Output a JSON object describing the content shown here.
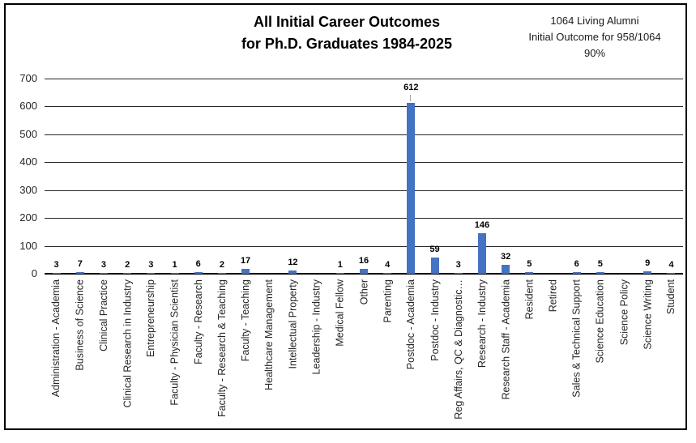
{
  "title_lines": [
    "All Initial Career Outcomes",
    "for Ph.D. Graduates 1984-2025"
  ],
  "annotation_lines": [
    "1064 Living Alumni",
    "Initial Outcome for 958/1064",
    "90%"
  ],
  "chart_data": {
    "type": "bar",
    "title": "All Initial Career Outcomes for Ph.D. Graduates 1984-2025",
    "annotation": "1064 Living Alumni Initial Outcome for 958/1064 90%",
    "xlabel": "",
    "ylabel": "",
    "ylim": [
      0,
      700
    ],
    "yticks": [
      0,
      100,
      200,
      300,
      400,
      500,
      600,
      700
    ],
    "grid": true,
    "legend": false,
    "bar_color": "#4472C4",
    "categories": [
      "Administration - Academia",
      "Business of Science",
      "Clinical Practice",
      "Clinical Research in Industry",
      "Entrepreneurship",
      "Faculty - Physician Scientist",
      "Faculty - Research",
      "Faculty - Research & Teaching",
      "Faculty - Teaching",
      "Healthcare Management",
      "Intellectual Property",
      "Leadership - Industry",
      "Medical Fellow",
      "Other",
      "Parenting",
      "Postdoc - Academia",
      "Postdoc - Industry",
      "Reg Affairs, QC & Diagnostic…",
      "Research - Industry",
      "Research Staff - Academia",
      "Resident",
      "Retired",
      "Sales & Technical Support",
      "Science Education",
      "Science Policy",
      "Science Writing",
      "Student"
    ],
    "values": [
      3,
      7,
      3,
      2,
      3,
      1,
      6,
      2,
      17,
      0,
      12,
      0,
      1,
      16,
      4,
      612,
      59,
      3,
      146,
      32,
      5,
      0,
      6,
      5,
      0,
      9,
      4
    ]
  }
}
